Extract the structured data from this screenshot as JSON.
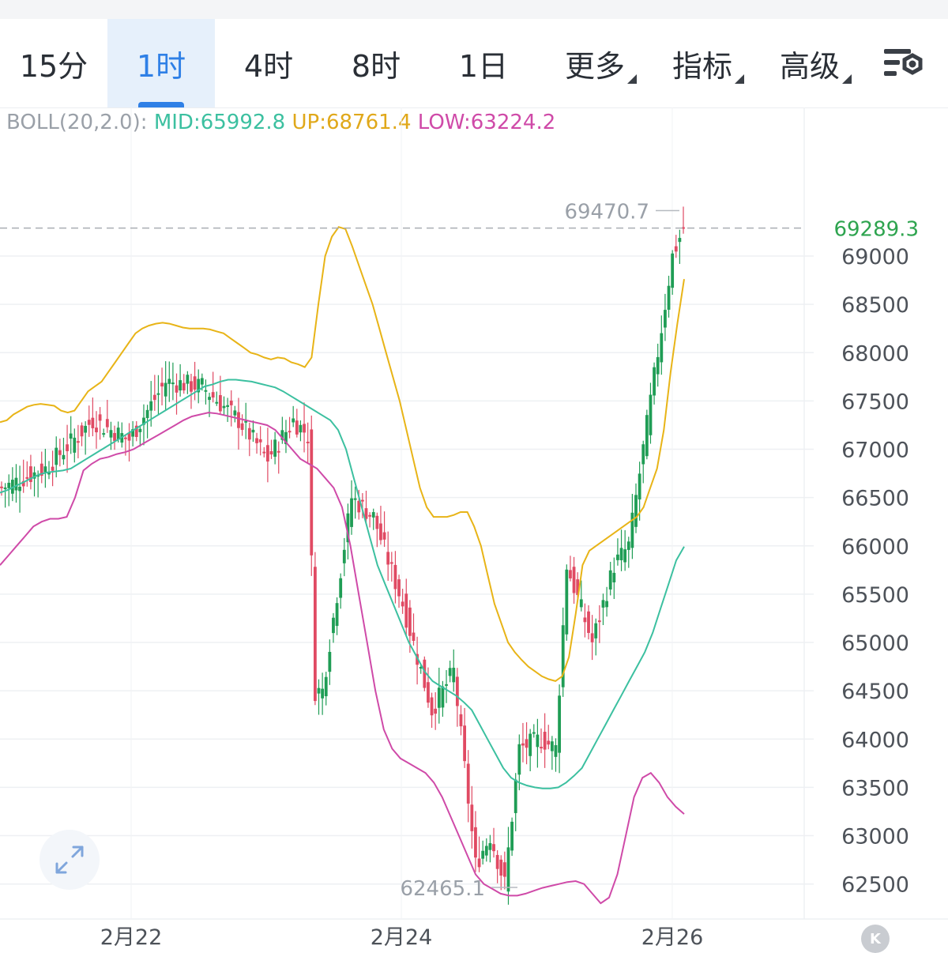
{
  "tabs": [
    {
      "label": "15分",
      "active": false,
      "dropdown": false
    },
    {
      "label": "1时",
      "active": true,
      "dropdown": false
    },
    {
      "label": "4时",
      "active": false,
      "dropdown": false
    },
    {
      "label": "8时",
      "active": false,
      "dropdown": false
    },
    {
      "label": "1日",
      "active": false,
      "dropdown": false
    },
    {
      "label": "更多",
      "active": false,
      "dropdown": true
    },
    {
      "label": "指标",
      "active": false,
      "dropdown": true
    },
    {
      "label": "高级",
      "active": false,
      "dropdown": true
    }
  ],
  "settings_icon": "chart-settings-icon",
  "indicator": {
    "name": "BOLL(20,2.0):",
    "mid": "MID:65992.8",
    "up": "UP:68761.4",
    "low": "LOW:63224.2"
  },
  "colors": {
    "up_candle": "#1f9d55",
    "down_candle": "#e04a63",
    "mid": "#3cc0a0",
    "upper": "#e8b417",
    "lower": "#cf4aa8",
    "accent": "#2f80e6",
    "axis_text": "#4d5259",
    "last_price": "#2ea44f"
  },
  "expand_icon": "expand-arrows-icon",
  "k_button_label": "K",
  "chart_data": {
    "type": "candlestick",
    "indicator": "Bollinger Bands (20, 2.0)",
    "y_ticks": [
      69000,
      68500,
      68000,
      67500,
      67000,
      66500,
      66000,
      65500,
      65000,
      64500,
      64000,
      63500,
      63000,
      62500
    ],
    "x_ticks": [
      "2月22",
      "2月24",
      "2月26"
    ],
    "ylim": [
      62000,
      70300
    ],
    "last_price": 69289.3,
    "last_price_label": "69289.3",
    "high_marker": {
      "value": 69470.7,
      "label": "69470.7"
    },
    "low_marker": {
      "value": 62465.1,
      "label": "62465.1"
    },
    "grid": true,
    "candle_count": 144,
    "upper_band": [
      67280,
      67300,
      67360,
      67400,
      67440,
      67460,
      67470,
      67460,
      67450,
      67400,
      67380,
      67400,
      67500,
      67600,
      67650,
      67700,
      67800,
      67900,
      68000,
      68100,
      68200,
      68250,
      68280,
      68300,
      68310,
      68300,
      68280,
      68260,
      68250,
      68250,
      68250,
      68240,
      68220,
      68200,
      68150,
      68100,
      68050,
      68000,
      67980,
      67950,
      67930,
      67950,
      67940,
      67900,
      67880,
      67850,
      67950,
      68500,
      69000,
      69200,
      69300,
      69280,
      69100,
      68900,
      68700,
      68500,
      68250,
      68000,
      67750,
      67500,
      67200,
      66900,
      66600,
      66400,
      66300,
      66300,
      66300,
      66320,
      66350,
      66350,
      66200,
      66000,
      65700,
      65400,
      65200,
      65000,
      64900,
      64820,
      64750,
      64700,
      64650,
      64620,
      64600,
      64650,
      64850,
      65300,
      65800,
      65950,
      66000,
      66050,
      66100,
      66150,
      66200,
      66250,
      66300,
      66400,
      66600,
      66800,
      67200,
      67800,
      68300,
      68761.4
    ],
    "middle_band": [
      66550,
      66580,
      66620,
      66660,
      66700,
      66740,
      66760,
      66770,
      66780,
      66800,
      66850,
      66900,
      66950,
      67000,
      67050,
      67100,
      67150,
      67200,
      67250,
      67300,
      67350,
      67400,
      67450,
      67500,
      67550,
      67600,
      67650,
      67670,
      67700,
      67720,
      67720,
      67710,
      67700,
      67680,
      67660,
      67640,
      67600,
      67550,
      67500,
      67450,
      67400,
      67350,
      67300,
      67200,
      67000,
      66700,
      66400,
      66100,
      65800,
      65600,
      65400,
      65200,
      65000,
      64850,
      64700,
      64600,
      64550,
      64500,
      64450,
      64380,
      64300,
      64150,
      64000,
      63850,
      63700,
      63600,
      63550,
      63520,
      63500,
      63490,
      63490,
      63500,
      63550,
      63620,
      63700,
      63850,
      64000,
      64150,
      64300,
      64450,
      64600,
      64750,
      64900,
      65100,
      65350,
      65600,
      65850,
      65992.8
    ],
    "lower_band": [
      65800,
      65900,
      66000,
      66100,
      66200,
      66250,
      66280,
      66280,
      66300,
      66500,
      66780,
      66850,
      66900,
      66920,
      66950,
      66970,
      67000,
      67050,
      67100,
      67150,
      67200,
      67250,
      67300,
      67340,
      67360,
      67380,
      67370,
      67350,
      67330,
      67310,
      67290,
      67270,
      67250,
      67200,
      67100,
      67000,
      66900,
      66850,
      66800,
      66700,
      66600,
      66400,
      66000,
      65500,
      65000,
      64500,
      64100,
      63900,
      63800,
      63750,
      63700,
      63650,
      63550,
      63400,
      63200,
      63000,
      62800,
      62600,
      62500,
      62450,
      62400,
      62380,
      62380,
      62400,
      62430,
      62460,
      62480,
      62500,
      62520,
      62530,
      62500,
      62400,
      62300,
      62360,
      62600,
      63000,
      63400,
      63600,
      63650,
      63550,
      63400,
      63300,
      63224.2
    ]
  }
}
